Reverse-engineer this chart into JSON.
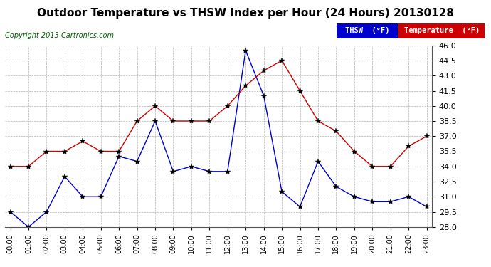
{
  "title": "Outdoor Temperature vs THSW Index per Hour (24 Hours) 20130128",
  "copyright": "Copyright 2013 Cartronics.com",
  "ylim": [
    28.0,
    46.0
  ],
  "yticks": [
    28.0,
    29.5,
    31.0,
    32.5,
    34.0,
    35.5,
    37.0,
    38.5,
    40.0,
    41.5,
    43.0,
    44.5,
    46.0
  ],
  "hours": [
    "00:00",
    "01:00",
    "02:00",
    "03:00",
    "04:00",
    "05:00",
    "06:00",
    "07:00",
    "08:00",
    "09:00",
    "10:00",
    "11:00",
    "12:00",
    "13:00",
    "14:00",
    "15:00",
    "16:00",
    "17:00",
    "18:00",
    "19:00",
    "20:00",
    "21:00",
    "22:00",
    "23:00"
  ],
  "temperature": [
    34.0,
    34.0,
    35.5,
    35.5,
    36.5,
    35.5,
    35.5,
    38.5,
    40.0,
    38.5,
    38.5,
    38.5,
    40.0,
    42.0,
    43.5,
    44.5,
    41.5,
    38.5,
    37.5,
    35.5,
    34.0,
    34.0,
    36.0,
    37.0
  ],
  "thsw": [
    29.5,
    28.0,
    29.5,
    33.0,
    31.0,
    31.0,
    35.0,
    34.5,
    38.5,
    33.5,
    34.0,
    33.5,
    33.5,
    45.5,
    41.0,
    31.5,
    30.0,
    34.5,
    32.0,
    31.0,
    30.5,
    30.5,
    31.0,
    30.0
  ],
  "temp_color": "#cc0000",
  "thsw_color": "#0000cc",
  "background_color": "#ffffff",
  "grid_color": "#aaaaaa",
  "title_fontsize": 11,
  "legend_thsw_bg": "#0000cc",
  "legend_temp_bg": "#cc0000"
}
